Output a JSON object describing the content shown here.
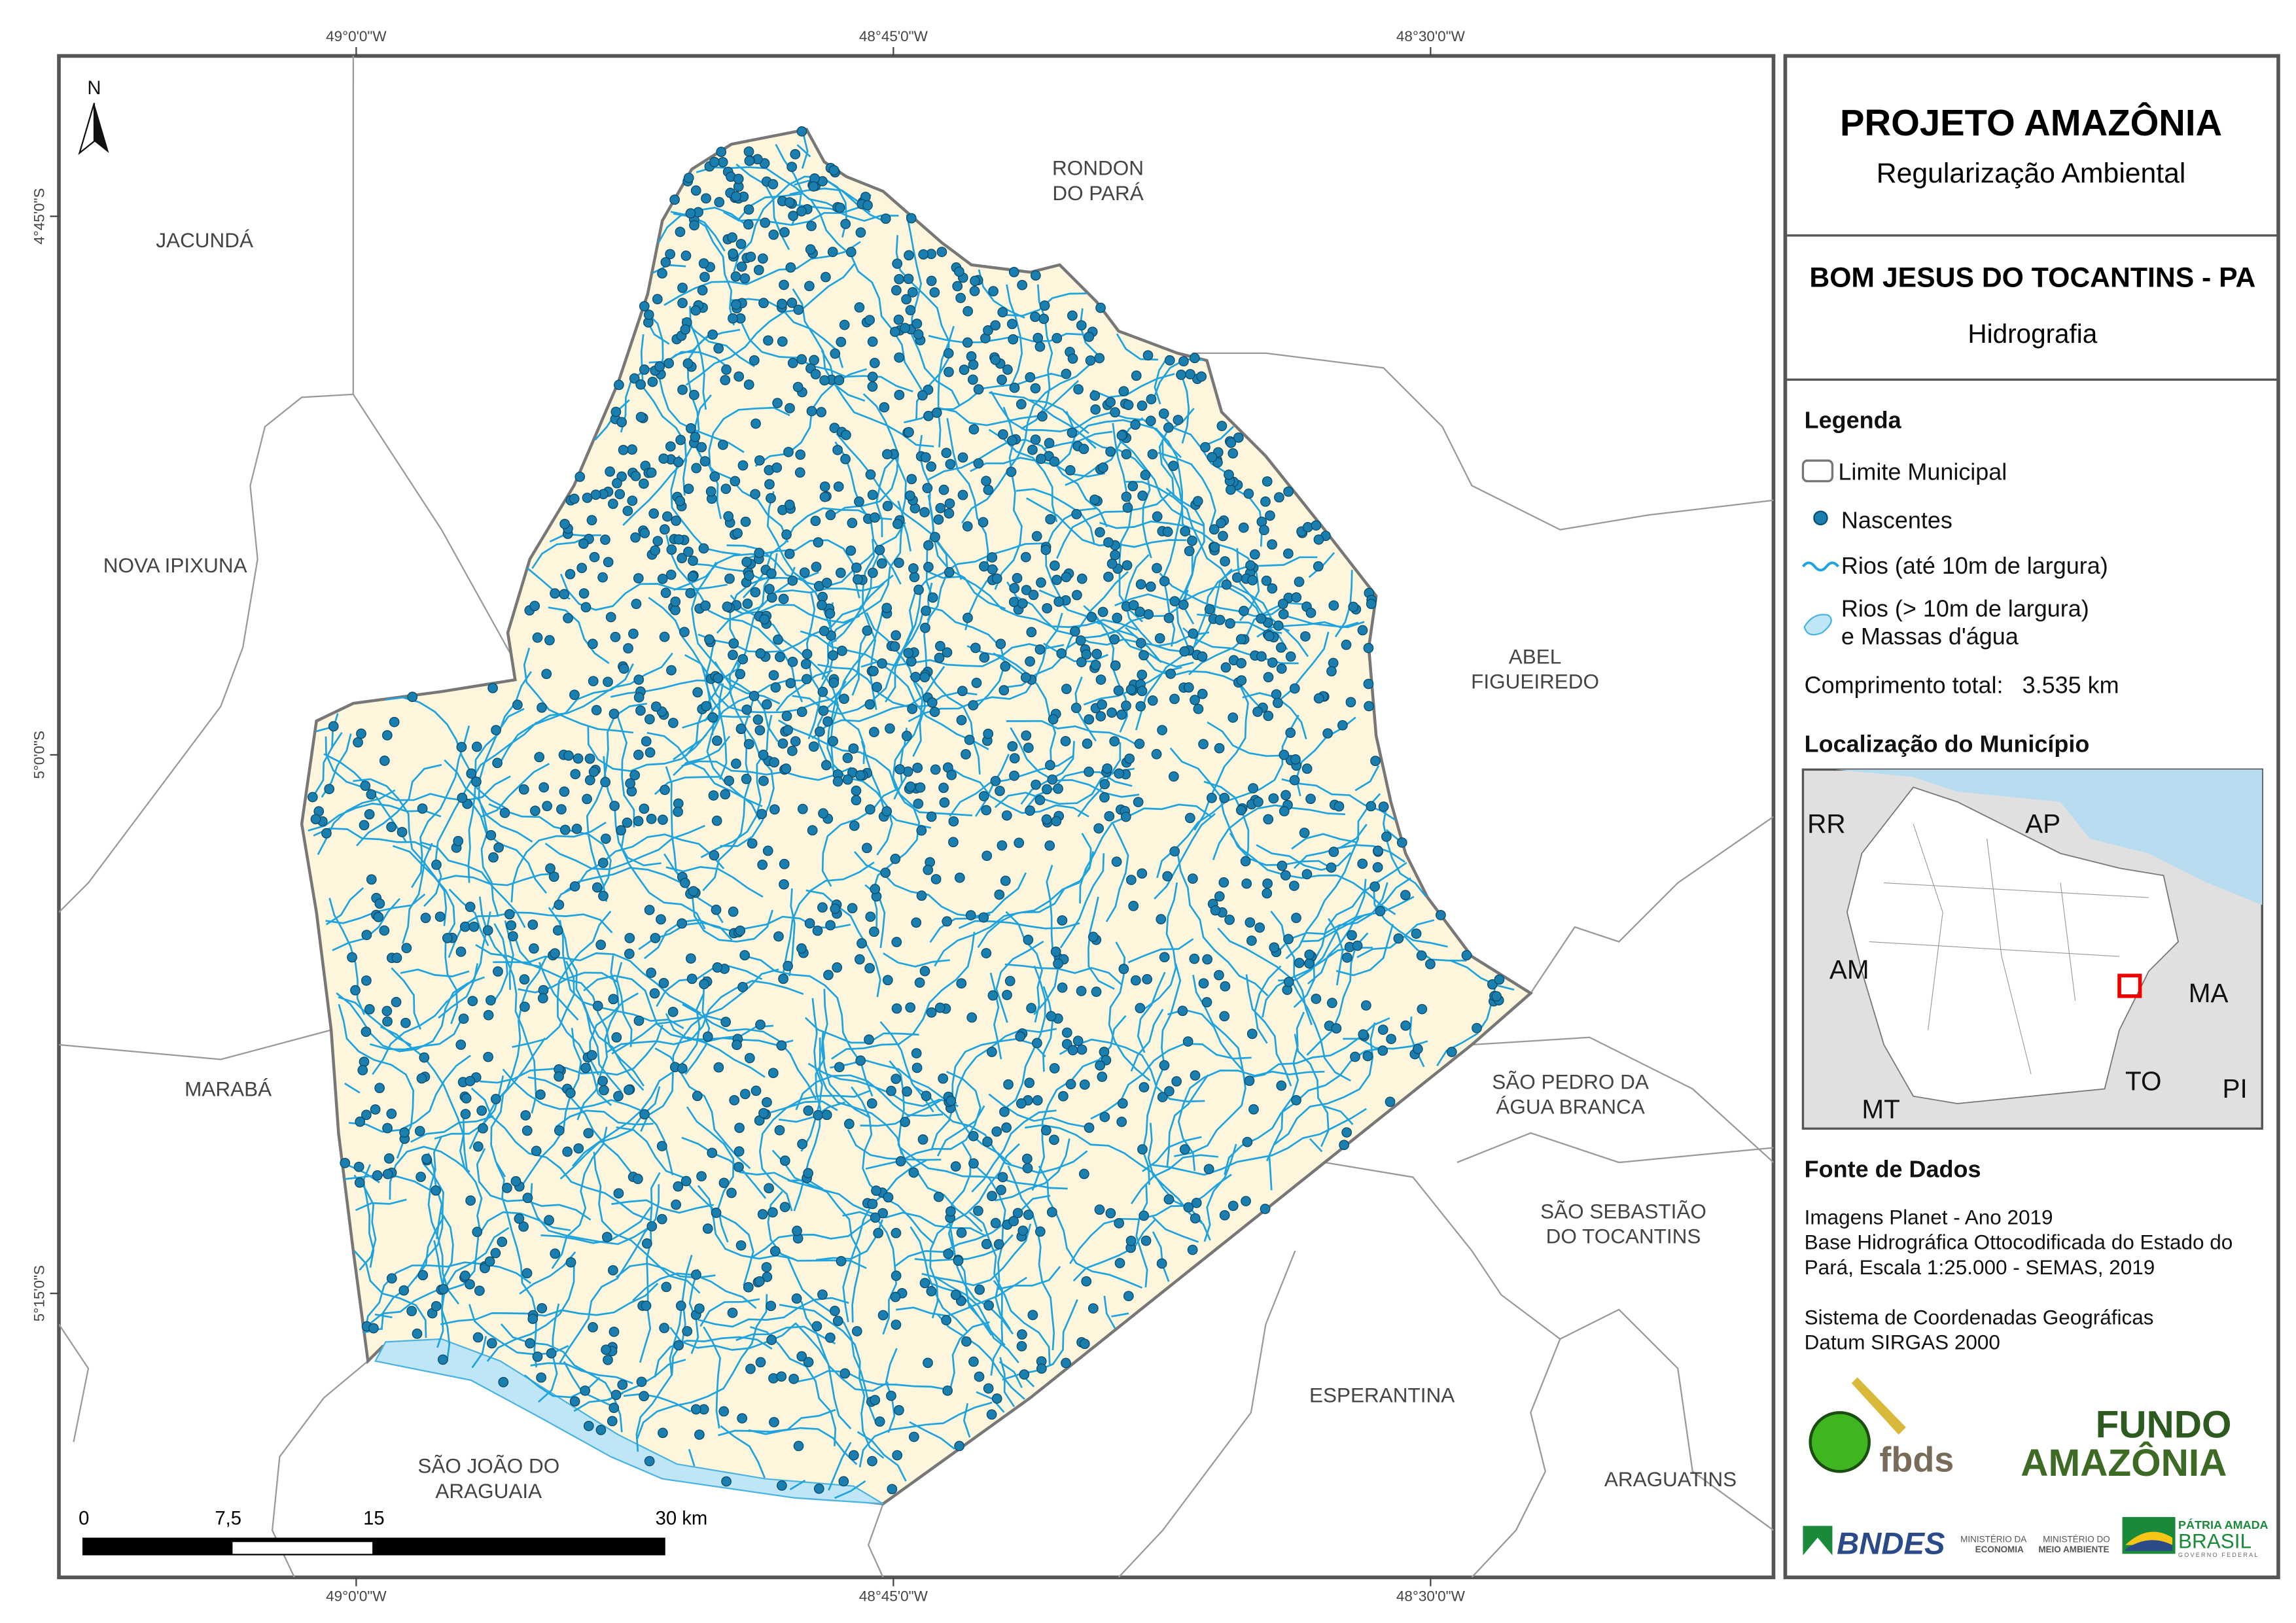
{
  "header": {
    "title": "PROJETO AMAZÔNIA",
    "subtitle": "Regularização Ambiental"
  },
  "municipality": {
    "name": "BOM JESUS DO TOCANTINS - PA",
    "theme": "Hidrografia"
  },
  "legend": {
    "title": "Legenda",
    "items": [
      {
        "label": "Limite Municipal",
        "icon": "boundary-swatch"
      },
      {
        "label": "Nascentes",
        "icon": "spring-dot",
        "color": "#1a7fae"
      },
      {
        "label": "Rios (até 10m de largura)",
        "icon": "river-line",
        "color": "#1ea3dc"
      },
      {
        "label": "Rios (> 10m de largura)",
        "label2": "e Massas d'água",
        "icon": "water-polygon",
        "color": "#bfe6f7"
      }
    ],
    "total_length_label": "Comprimento total:",
    "total_length_value": "3.535 km"
  },
  "location": {
    "title": "Localização do Município",
    "states": [
      "RR",
      "AP",
      "AM",
      "MA",
      "TO",
      "MT",
      "PI"
    ]
  },
  "sources": {
    "title": "Fonte de Dados",
    "lines": [
      "Imagens Planet - Ano 2019",
      "Base Hidrográfica Ottocodificada do Estado do",
      "Pará, Escala 1:25.000 - SEMAS, 2019",
      "Sistema de Coordenadas Geográficas",
      "Datum SIRGAS 2000"
    ]
  },
  "logos": {
    "fbds": "fbds",
    "fundo_amazonia": [
      "FUNDO",
      "AMAZÔNIA"
    ],
    "bndes": "BNDES",
    "ministerio_economia": [
      "MINISTÉRIO DA",
      "ECONOMIA"
    ],
    "ministerio_meio_ambiente": [
      "MINISTÉRIO DO",
      "MEIO AMBIENTE"
    ],
    "governo": [
      "PÁTRIA AMADA",
      "BRASIL",
      "GOVERNO FEDERAL"
    ]
  },
  "map": {
    "north_label": "N",
    "longitudes": [
      "49°0'0\"W",
      "48°45'0\"W",
      "48°30'0\"W"
    ],
    "latitudes": [
      "4°45'0\"S",
      "5°0'0\"S",
      "5°15'0\"S"
    ],
    "neighbors": [
      [
        "RONDON",
        "DO PARÁ"
      ],
      [
        "JACUNDÁ"
      ],
      [
        "NOVA IPIXUNA"
      ],
      [
        "ABEL",
        "FIGUEIREDO"
      ],
      [
        "MARABÁ"
      ],
      [
        "SÃO PEDRO DA",
        "ÁGUA BRANCA"
      ],
      [
        "SÃO SEBASTIÃO",
        "DO TOCANTINS"
      ],
      [
        "ESPERANTINA"
      ],
      [
        "SÃO JOÃO DO",
        "ARAGUAIA"
      ],
      [
        "ARAGUATINS"
      ]
    ],
    "scale": {
      "ticks": [
        "0",
        "7,5",
        "15",
        "30 km"
      ]
    },
    "colors": {
      "land": "#fdf5dc",
      "river": "#1ea3dc",
      "spring": "#1a7fae",
      "water": "#bfe6f7",
      "boundary": "#777777"
    }
  }
}
